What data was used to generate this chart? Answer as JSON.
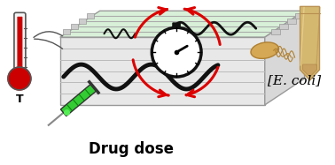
{
  "bg_color": "#ffffff",
  "chip_top_fill": "#d8f0d8",
  "chip_top_edge": "#999999",
  "chip_side_fill": "#e8e8e8",
  "chip_bottom_fill": "#f0f0f0",
  "channel_color": "#bbbbbb",
  "arrow_color": "#dd0000",
  "thermo_red": "#cc0000",
  "thermo_glass": "#f5f5f5",
  "thermo_outline": "#555555",
  "syringe_green": "#33cc33",
  "syringe_body": "#dddddd",
  "clock_face": "#ffffff",
  "clock_ring": "#111111",
  "worm_color": "#111111",
  "ecoli_color": "#d4a855",
  "ecoli_outline": "#b08030",
  "wood_color": "#d4b870",
  "wood_dark": "#b89050",
  "wood_light": "#e8d090",
  "text_drug": "Drug dose",
  "text_ecoli": "[E. coli]",
  "text_T": "T",
  "label_fontsize": 9,
  "t_fontsize": 9
}
